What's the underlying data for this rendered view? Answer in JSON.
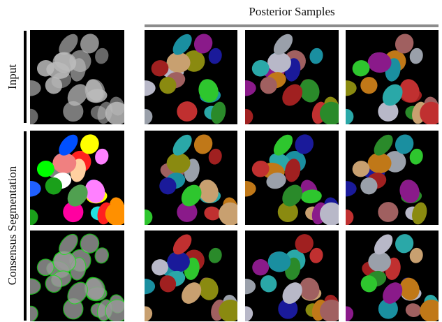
{
  "header": {
    "title": "Posterior Samples"
  },
  "rows": {
    "labels": [
      "Input",
      "Consensus Segmentation"
    ]
  }
}
